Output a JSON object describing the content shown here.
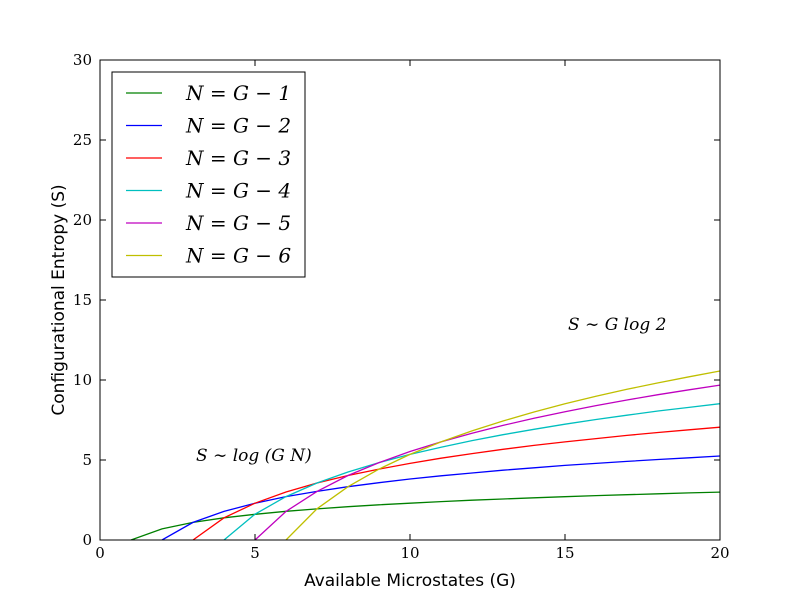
{
  "chart_data": {
    "type": "line",
    "xlabel": "Available Microstates (G)",
    "ylabel": "Configurational Entropy (S)",
    "xlim": [
      0,
      20
    ],
    "ylim": [
      0,
      30
    ],
    "x_ticks": [
      0,
      5,
      10,
      15,
      20
    ],
    "y_ticks": [
      0,
      5,
      10,
      15,
      20,
      25,
      30
    ],
    "grid": false,
    "legend_position": "top-left",
    "series": [
      {
        "name": "N = G − 1",
        "color": "#008000",
        "points": [
          [
            1,
            0
          ],
          [
            2,
            0.693
          ],
          [
            3,
            1.099
          ],
          [
            4,
            1.386
          ],
          [
            5,
            1.609
          ],
          [
            6,
            1.792
          ],
          [
            7,
            1.946
          ],
          [
            8,
            2.079
          ],
          [
            9,
            2.197
          ],
          [
            10,
            2.303
          ],
          [
            11,
            2.398
          ],
          [
            12,
            2.485
          ],
          [
            13,
            2.565
          ],
          [
            14,
            2.639
          ],
          [
            15,
            2.708
          ],
          [
            16,
            2.773
          ],
          [
            17,
            2.833
          ],
          [
            18,
            2.89
          ],
          [
            19,
            2.944
          ],
          [
            20,
            2.996
          ]
        ]
      },
      {
        "name": "N = G − 2",
        "color": "#0000ff",
        "points": [
          [
            2,
            0
          ],
          [
            3,
            1.1
          ],
          [
            4,
            1.79
          ],
          [
            5,
            2.3
          ],
          [
            6,
            2.71
          ],
          [
            7,
            3.04
          ],
          [
            8,
            3.33
          ],
          [
            9,
            3.58
          ],
          [
            10,
            3.81
          ],
          [
            11,
            4.01
          ],
          [
            12,
            4.19
          ],
          [
            13,
            4.36
          ],
          [
            14,
            4.51
          ],
          [
            15,
            4.66
          ],
          [
            16,
            4.79
          ],
          [
            17,
            4.91
          ],
          [
            18,
            5.03
          ],
          [
            19,
            5.14
          ],
          [
            20,
            5.25
          ]
        ]
      },
      {
        "name": "N = G − 3",
        "color": "#ff0000",
        "points": [
          [
            3,
            0
          ],
          [
            4,
            1.39
          ],
          [
            5,
            2.3
          ],
          [
            6,
            3.0
          ],
          [
            7,
            3.56
          ],
          [
            8,
            4.03
          ],
          [
            9,
            4.43
          ],
          [
            10,
            4.79
          ],
          [
            11,
            5.11
          ],
          [
            12,
            5.4
          ],
          [
            13,
            5.67
          ],
          [
            14,
            5.91
          ],
          [
            15,
            6.13
          ],
          [
            16,
            6.34
          ],
          [
            17,
            6.54
          ],
          [
            18,
            6.72
          ],
          [
            19,
            6.89
          ],
          [
            20,
            7.05
          ]
        ]
      },
      {
        "name": "N = G − 4",
        "color": "#00bfbf",
        "points": [
          [
            4,
            0
          ],
          [
            5,
            1.61
          ],
          [
            6,
            2.71
          ],
          [
            7,
            3.56
          ],
          [
            8,
            4.25
          ],
          [
            9,
            4.84
          ],
          [
            10,
            5.35
          ],
          [
            11,
            5.8
          ],
          [
            12,
            6.21
          ],
          [
            13,
            6.58
          ],
          [
            14,
            6.92
          ],
          [
            15,
            7.24
          ],
          [
            16,
            7.53
          ],
          [
            17,
            7.8
          ],
          [
            18,
            8.06
          ],
          [
            19,
            8.29
          ],
          [
            20,
            8.52
          ]
        ]
      },
      {
        "name": "N = G − 5",
        "color": "#bf00bf",
        "points": [
          [
            5,
            0
          ],
          [
            6,
            1.79
          ],
          [
            7,
            3.04
          ],
          [
            8,
            4.03
          ],
          [
            9,
            4.84
          ],
          [
            10,
            5.53
          ],
          [
            11,
            6.13
          ],
          [
            12,
            6.67
          ],
          [
            13,
            7.16
          ],
          [
            14,
            7.61
          ],
          [
            15,
            8.02
          ],
          [
            16,
            8.4
          ],
          [
            17,
            8.75
          ],
          [
            18,
            9.08
          ],
          [
            19,
            9.39
          ],
          [
            20,
            9.68
          ]
        ]
      },
      {
        "name": "N = G − 6",
        "color": "#bfbf00",
        "points": [
          [
            6,
            0
          ],
          [
            7,
            1.95
          ],
          [
            8,
            3.33
          ],
          [
            9,
            4.43
          ],
          [
            10,
            5.35
          ],
          [
            11,
            6.13
          ],
          [
            12,
            6.82
          ],
          [
            13,
            7.44
          ],
          [
            14,
            8.0
          ],
          [
            15,
            8.51
          ],
          [
            16,
            8.98
          ],
          [
            17,
            9.42
          ],
          [
            18,
            9.82
          ],
          [
            19,
            10.2
          ],
          [
            20,
            10.56
          ]
        ]
      }
    ],
    "annotations": [
      {
        "text": "S ∼ log (G N)",
        "x": 4.0,
        "y": 5.3
      },
      {
        "text": "S ∼ G log 2",
        "x": 16.0,
        "y": 13.5
      }
    ]
  }
}
